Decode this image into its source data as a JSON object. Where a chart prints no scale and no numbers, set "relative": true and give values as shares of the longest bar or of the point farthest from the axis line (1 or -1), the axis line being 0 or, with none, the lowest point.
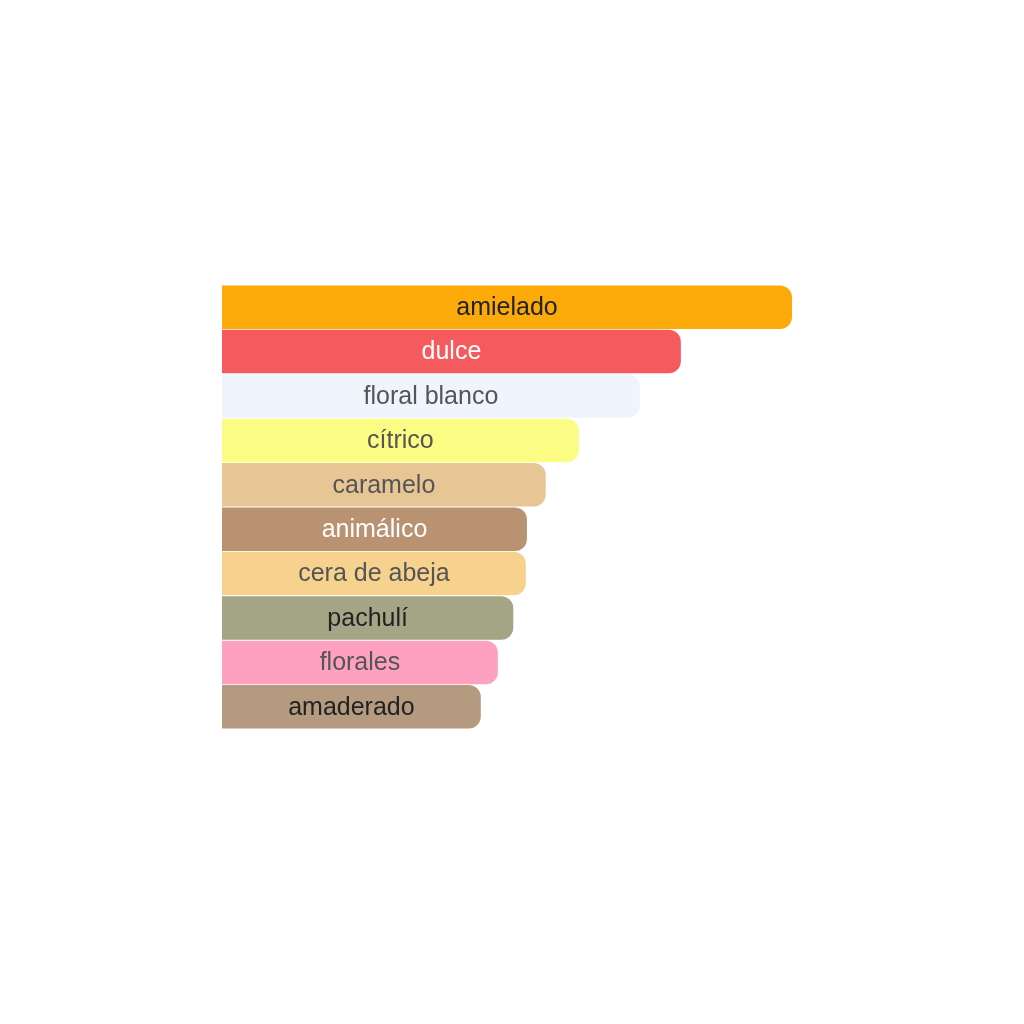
{
  "chart_data": {
    "type": "bar",
    "orientation": "horizontal",
    "relative": true,
    "categories": [
      "amielado",
      "dulce",
      "floral blanco",
      "cítrico",
      "caramelo",
      "animálico",
      "cera de abeja",
      "pachulí",
      "florales",
      "amaderado"
    ],
    "values": [
      1,
      0.805,
      0.733,
      0.626,
      0.568,
      0.535,
      0.533,
      0.511,
      0.484,
      0.454
    ],
    "colors": [
      "#fcaa0a",
      "#f45a5e",
      "#f0f4fc",
      "#fbfc84",
      "#e8c595",
      "#b99272",
      "#f6d28e",
      "#a3a585",
      "#fea0c0",
      "#b49a7e"
    ],
    "legend": false
  }
}
